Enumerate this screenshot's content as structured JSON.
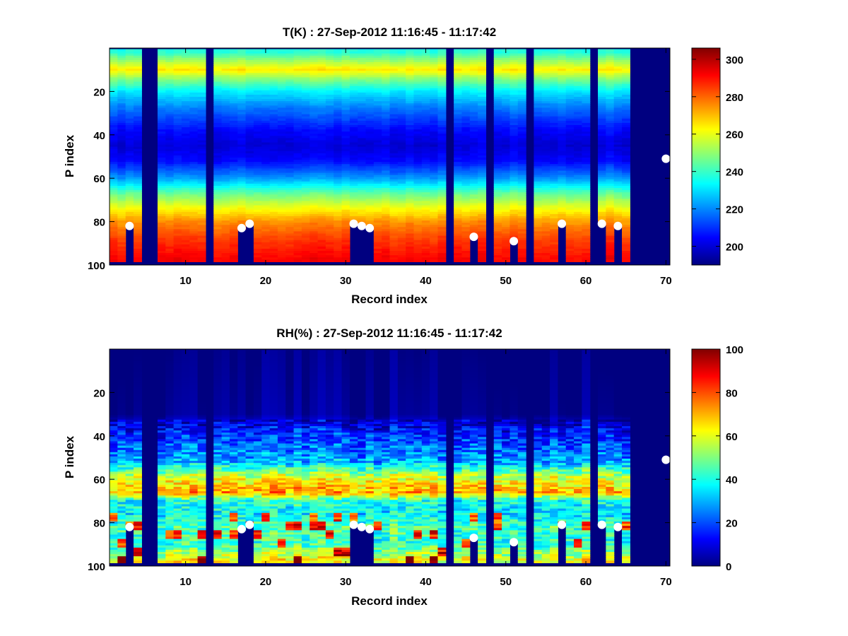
{
  "chart_data": [
    {
      "type": "heatmap",
      "title": "T(K) : 27-Sep-2012 11:16:45 - 11:17:42",
      "xlabel": "Record index",
      "ylabel": "P index",
      "xlim": [
        0.5,
        70.5
      ],
      "ylim": [
        100,
        0
      ],
      "x_ticks": [
        10,
        20,
        30,
        40,
        50,
        60,
        70
      ],
      "y_ticks": [
        20,
        40,
        60,
        80,
        100
      ],
      "colormap": "jet",
      "clim": [
        190,
        306
      ],
      "colorbar_ticks": [
        200,
        220,
        240,
        260,
        280,
        300
      ],
      "empty_records": [
        5,
        6,
        13,
        43,
        48,
        53,
        61,
        66,
        67,
        68,
        69
      ],
      "short_records": [
        {
          "record": 3,
          "last_level": 82
        },
        {
          "record": 17,
          "last_level": 83
        },
        {
          "record": 18,
          "last_level": 81
        },
        {
          "record": 31,
          "last_level": 81
        },
        {
          "record": 32,
          "last_level": 82
        },
        {
          "record": 33,
          "last_level": 83
        },
        {
          "record": 46,
          "last_level": 87
        },
        {
          "record": 51,
          "last_level": 89
        },
        {
          "record": 57,
          "last_level": 81
        },
        {
          "record": 62,
          "last_level": 81
        },
        {
          "record": 64,
          "last_level": 82
        },
        {
          "record": 70,
          "last_level": 51
        }
      ],
      "typical_profile": [
        {
          "p": 2,
          "value": 238
        },
        {
          "p": 6,
          "value": 252
        },
        {
          "p": 10,
          "value": 265
        },
        {
          "p": 14,
          "value": 250
        },
        {
          "p": 20,
          "value": 232
        },
        {
          "p": 28,
          "value": 218
        },
        {
          "p": 38,
          "value": 205
        },
        {
          "p": 45,
          "value": 200
        },
        {
          "p": 52,
          "value": 205
        },
        {
          "p": 60,
          "value": 222
        },
        {
          "p": 67,
          "value": 245
        },
        {
          "p": 74,
          "value": 262
        },
        {
          "p": 80,
          "value": 275
        },
        {
          "p": 88,
          "value": 285
        },
        {
          "p": 97,
          "value": 292
        }
      ]
    },
    {
      "type": "heatmap",
      "title": "RH(%) : 27-Sep-2012 11:16:45 - 11:17:42",
      "xlabel": "Record index",
      "ylabel": "P index",
      "xlim": [
        0.5,
        70.5
      ],
      "ylim": [
        100,
        0
      ],
      "x_ticks": [
        10,
        20,
        30,
        40,
        50,
        60,
        70
      ],
      "y_ticks": [
        20,
        40,
        60,
        80,
        100
      ],
      "colormap": "jet",
      "clim": [
        0,
        100
      ],
      "colorbar_ticks": [
        0,
        20,
        40,
        60,
        80,
        100
      ],
      "empty_records": [
        5,
        6,
        13,
        43,
        48,
        53,
        61,
        66,
        67,
        68,
        69
      ],
      "short_records": [
        {
          "record": 3,
          "last_level": 82
        },
        {
          "record": 17,
          "last_level": 83
        },
        {
          "record": 18,
          "last_level": 81
        },
        {
          "record": 31,
          "last_level": 81
        },
        {
          "record": 32,
          "last_level": 82
        },
        {
          "record": 33,
          "last_level": 83
        },
        {
          "record": 46,
          "last_level": 87
        },
        {
          "record": 51,
          "last_level": 89
        },
        {
          "record": 57,
          "last_level": 81
        },
        {
          "record": 62,
          "last_level": 81
        },
        {
          "record": 64,
          "last_level": 82
        },
        {
          "record": 70,
          "last_level": 51
        }
      ],
      "typical_profile": [
        {
          "p": 2,
          "value": 0
        },
        {
          "p": 30,
          "value": 2
        },
        {
          "p": 36,
          "value": 12
        },
        {
          "p": 44,
          "value": 22
        },
        {
          "p": 52,
          "value": 30
        },
        {
          "p": 58,
          "value": 55
        },
        {
          "p": 62,
          "value": 64
        },
        {
          "p": 66,
          "value": 72
        },
        {
          "p": 70,
          "value": 40
        },
        {
          "p": 76,
          "value": 36
        },
        {
          "p": 82,
          "value": 45
        },
        {
          "p": 90,
          "value": 42
        },
        {
          "p": 97,
          "value": 62
        }
      ]
    }
  ]
}
